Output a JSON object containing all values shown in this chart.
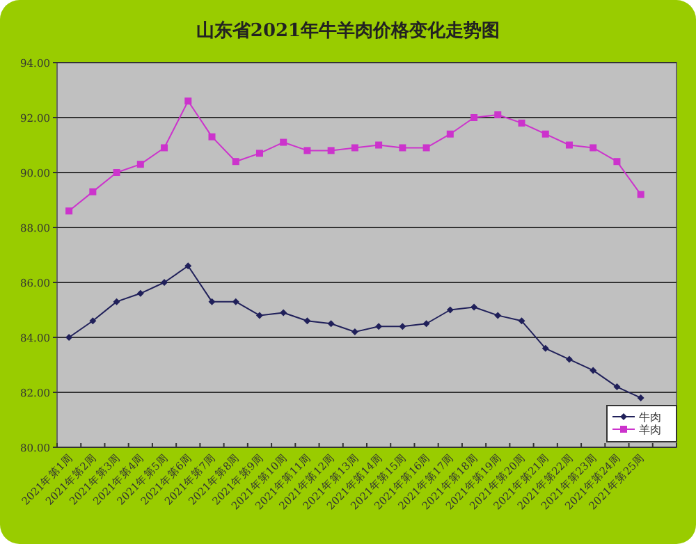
{
  "chart_data": {
    "type": "line",
    "title": "山东省2021年牛羊肉价格变化走势图",
    "categories": [
      "2021年第1周",
      "2021年第2周",
      "2021年第3周",
      "2021年第4周",
      "2021年第5周",
      "2021年第6周",
      "2021年第7周",
      "2021年第8周",
      "2021年第9周",
      "2021年第10周",
      "2021年第11周",
      "2021年第12周",
      "2021年第13周",
      "2021年第14周",
      "2021年第15周",
      "2021年第16周",
      "2021年第17周",
      "2021年第18周",
      "2021年第19周",
      "2021年第20周",
      "2021年第21周",
      "2021年第22周",
      "2021年第23周",
      "2021年第24周",
      "2021年第25周"
    ],
    "series": [
      {
        "name": "牛肉",
        "color": "#20205a",
        "marker": "diamond",
        "values": [
          84.0,
          84.6,
          85.3,
          85.6,
          86.0,
          86.6,
          85.3,
          85.3,
          84.8,
          84.9,
          84.6,
          84.5,
          84.2,
          84.4,
          84.4,
          84.5,
          85.0,
          85.1,
          84.8,
          84.6,
          83.6,
          83.2,
          82.8,
          82.2,
          81.8
        ]
      },
      {
        "name": "羊肉",
        "color": "#cc33cc",
        "marker": "square",
        "values": [
          88.6,
          89.3,
          90.0,
          90.3,
          90.9,
          92.6,
          91.3,
          90.4,
          90.7,
          91.1,
          90.8,
          90.8,
          90.9,
          91.0,
          90.9,
          90.9,
          91.4,
          92.0,
          92.1,
          91.8,
          91.4,
          91.0,
          90.9,
          90.4,
          89.2
        ]
      }
    ],
    "ylim": [
      80,
      94
    ],
    "yticks": [
      {
        "value": 80,
        "label": "80.00"
      },
      {
        "value": 82,
        "label": "82.00"
      },
      {
        "value": 84,
        "label": "84.00"
      },
      {
        "value": 86,
        "label": "86.00"
      },
      {
        "value": 88,
        "label": "88.00"
      },
      {
        "value": 90,
        "label": "90.00"
      },
      {
        "value": 92,
        "label": "92.00"
      },
      {
        "value": 94,
        "label": "94.00"
      }
    ],
    "grid": "y",
    "legend": "bottom right"
  }
}
